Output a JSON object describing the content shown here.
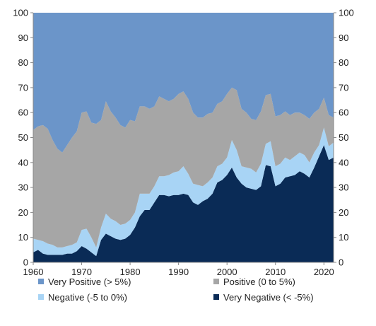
{
  "chart_data": {
    "type": "area",
    "stacked": true,
    "x": [
      1960,
      1961,
      1962,
      1963,
      1964,
      1965,
      1966,
      1967,
      1968,
      1969,
      1970,
      1971,
      1972,
      1973,
      1974,
      1975,
      1976,
      1977,
      1978,
      1979,
      1980,
      1981,
      1982,
      1983,
      1984,
      1985,
      1986,
      1987,
      1988,
      1989,
      1990,
      1991,
      1992,
      1993,
      1994,
      1995,
      1996,
      1997,
      1998,
      1999,
      2000,
      2001,
      2002,
      2003,
      2004,
      2005,
      2006,
      2007,
      2008,
      2009,
      2010,
      2011,
      2012,
      2013,
      2014,
      2015,
      2016,
      2017,
      2018,
      2019,
      2020,
      2021,
      2022
    ],
    "xlim": [
      1960,
      2022
    ],
    "ylim": [
      0,
      100
    ],
    "xticks": [
      1960,
      1970,
      1980,
      1990,
      2000,
      2010,
      2020
    ],
    "yticks": [
      0,
      10,
      20,
      30,
      40,
      50,
      60,
      70,
      80,
      90,
      100
    ],
    "left_axis": true,
    "right_axis": true,
    "grid": false,
    "legend_position": "bottom",
    "colors": {
      "very_positive": "#6b95c9",
      "positive": "#a6a6a6",
      "negative": "#a8d4f5",
      "very_negative": "#0a2b56"
    },
    "series": [
      {
        "name": "Very Negative (< -5%)",
        "key": "very_negative",
        "values": [
          4,
          5,
          3.5,
          3,
          3,
          3,
          3,
          3.5,
          3.5,
          4.5,
          6.5,
          5.5,
          4,
          2.5,
          9,
          11.5,
          10.5,
          9.5,
          9,
          9.5,
          11,
          14,
          18.5,
          21,
          21,
          24,
          27,
          27,
          26.5,
          27,
          27,
          27.5,
          27,
          24,
          23,
          24.5,
          25.5,
          27.5,
          32,
          33,
          35,
          38,
          34,
          31.5,
          30,
          29.5,
          29,
          30.5,
          39,
          38.5,
          30.5,
          31.5,
          34,
          34.5,
          35,
          36.5,
          35.5,
          34,
          38,
          42.5,
          47,
          41,
          42
        ]
      },
      {
        "name": "Negative (-5 to 0%)",
        "key": "negative",
        "values": [
          5.5,
          4,
          5,
          4.5,
          4,
          3,
          3,
          3,
          3.5,
          3.5,
          6.5,
          8,
          6,
          3.5,
          5,
          8,
          7,
          7,
          6,
          6,
          6,
          6,
          9,
          6.5,
          6.5,
          6.5,
          7.5,
          7.5,
          8.5,
          9,
          9.5,
          11,
          8.5,
          7.5,
          8,
          6,
          6.5,
          6.5,
          6.5,
          6.5,
          7,
          11,
          11,
          7,
          8,
          8,
          7,
          9,
          8.5,
          10,
          8,
          8,
          8,
          6.5,
          7.5,
          7.5,
          7.5,
          6,
          6,
          4.5,
          7,
          5.5,
          6
        ]
      },
      {
        "name": "Positive (0 to 5%)",
        "key": "positive",
        "values": [
          43.5,
          45.5,
          46.5,
          46,
          42,
          39.5,
          38,
          40.5,
          43,
          44.5,
          47,
          47,
          46,
          49.5,
          43,
          45,
          43,
          41.5,
          40,
          38.5,
          40,
          36.5,
          35,
          35,
          34,
          32,
          32,
          31,
          29.5,
          29.5,
          31,
          30,
          30,
          28.5,
          27,
          27.5,
          27.5,
          26,
          25,
          25,
          25.5,
          21,
          24,
          23,
          22,
          20,
          21,
          21,
          19.5,
          19,
          20,
          19.5,
          18.5,
          18,
          17.5,
          16,
          16,
          17.5,
          16,
          14.5,
          12,
          12.5,
          10
        ]
      },
      {
        "name": "Very Positive (> 5%)",
        "key": "very_positive",
        "values": [
          47,
          45.5,
          45,
          46.5,
          51,
          54.5,
          56,
          53,
          50,
          47.5,
          40,
          39.5,
          44,
          44.5,
          43,
          35.5,
          39.5,
          42,
          45,
          46,
          43,
          43.5,
          37.5,
          37.5,
          38.5,
          37.5,
          33.5,
          34.5,
          35.5,
          34.5,
          32.5,
          31.5,
          34.5,
          40,
          42,
          42,
          40.5,
          40,
          36.5,
          35.5,
          32.5,
          30,
          31,
          38.5,
          40,
          42.5,
          43,
          39.5,
          33,
          32.5,
          41.5,
          41,
          39.5,
          41,
          40,
          40,
          41,
          42.5,
          40,
          38.5,
          34,
          41,
          42
        ]
      }
    ],
    "legend": [
      {
        "label": "Very Positive (> 5%)",
        "key": "very_positive"
      },
      {
        "label": "Positive (0 to 5%)",
        "key": "positive"
      },
      {
        "label": "Negative (-5 to 0%)",
        "key": "negative"
      },
      {
        "label": "Very Negative (< -5%)",
        "key": "very_negative"
      }
    ]
  }
}
